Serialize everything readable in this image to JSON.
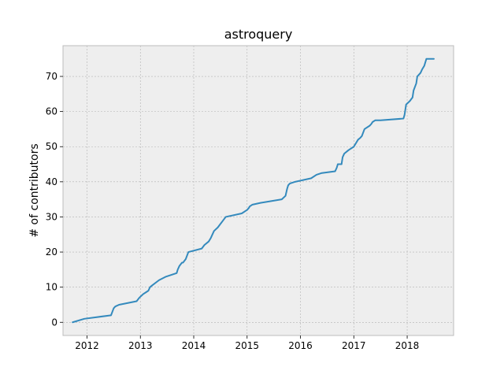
{
  "chart_data": {
    "type": "line",
    "title": "astroquery",
    "xlabel": "",
    "ylabel": "# of contributors",
    "xlim": [
      2011.55,
      2018.87
    ],
    "ylim": [
      -3.75,
      78.75
    ],
    "grid": true,
    "legend": "none",
    "xticks": [
      2012,
      2013,
      2014,
      2015,
      2016,
      2017,
      2018
    ],
    "xtick_labels": [
      "2012",
      "2013",
      "2014",
      "2015",
      "2016",
      "2017",
      "2018"
    ],
    "yticks": [
      0,
      10,
      20,
      30,
      40,
      50,
      60,
      70
    ],
    "ytick_labels": [
      "0",
      "10",
      "20",
      "30",
      "40",
      "50",
      "60",
      "70"
    ],
    "colors": {
      "background": "#eeeeee",
      "grid": "#b2b2b2",
      "line": "#348abd",
      "axes_edge": "#bcbcbc"
    },
    "series": [
      {
        "name": "",
        "x": [
          2011.73,
          2011.95,
          2012.45,
          2012.5,
          2012.53,
          2012.6,
          2012.93,
          2012.98,
          2013.05,
          2013.1,
          2013.15,
          2013.18,
          2013.22,
          2013.35,
          2013.48,
          2013.68,
          2013.7,
          2013.73,
          2013.78,
          2013.8,
          2013.85,
          2013.9,
          2014.15,
          2014.2,
          2014.28,
          2014.32,
          2014.38,
          2014.45,
          2014.5,
          2014.55,
          2014.6,
          2014.9,
          2015.0,
          2015.03,
          2015.05,
          2015.1,
          2015.25,
          2015.65,
          2015.72,
          2015.75,
          2015.77,
          2015.8,
          2015.9,
          2016.05,
          2016.2,
          2016.3,
          2016.4,
          2016.65,
          2016.68,
          2016.7,
          2016.77,
          2016.79,
          2016.82,
          2016.9,
          2017.0,
          2017.08,
          2017.12,
          2017.15,
          2017.2,
          2017.3,
          2017.33,
          2017.35,
          2017.4,
          2017.5,
          2017.93,
          2017.95,
          2017.98,
          2018.05,
          2018.1,
          2018.12,
          2018.17,
          2018.19,
          2018.25,
          2018.28,
          2018.32,
          2018.36,
          2018.39,
          2018.4,
          2018.44,
          2018.46,
          2018.48,
          2018.5
        ],
        "y": [
          0,
          1,
          2,
          4,
          4.5,
          5,
          6,
          7,
          8,
          8.5,
          9,
          10,
          10.5,
          12,
          13,
          14,
          15,
          16,
          17,
          17,
          18,
          20,
          21,
          22,
          23,
          24,
          26,
          27,
          28,
          29,
          30,
          31,
          32,
          32.5,
          33,
          33.5,
          34,
          35,
          36,
          38,
          39,
          39.5,
          40,
          40.5,
          41,
          42,
          42.5,
          43,
          44,
          45,
          45,
          47,
          48,
          49,
          50,
          52,
          52.5,
          53,
          55,
          56,
          56.5,
          57,
          57.5,
          57.5,
          58,
          59,
          62,
          63,
          64,
          66,
          68,
          70,
          71,
          72,
          73,
          75,
          75,
          75,
          75,
          75,
          75,
          75
        ]
      }
    ]
  }
}
